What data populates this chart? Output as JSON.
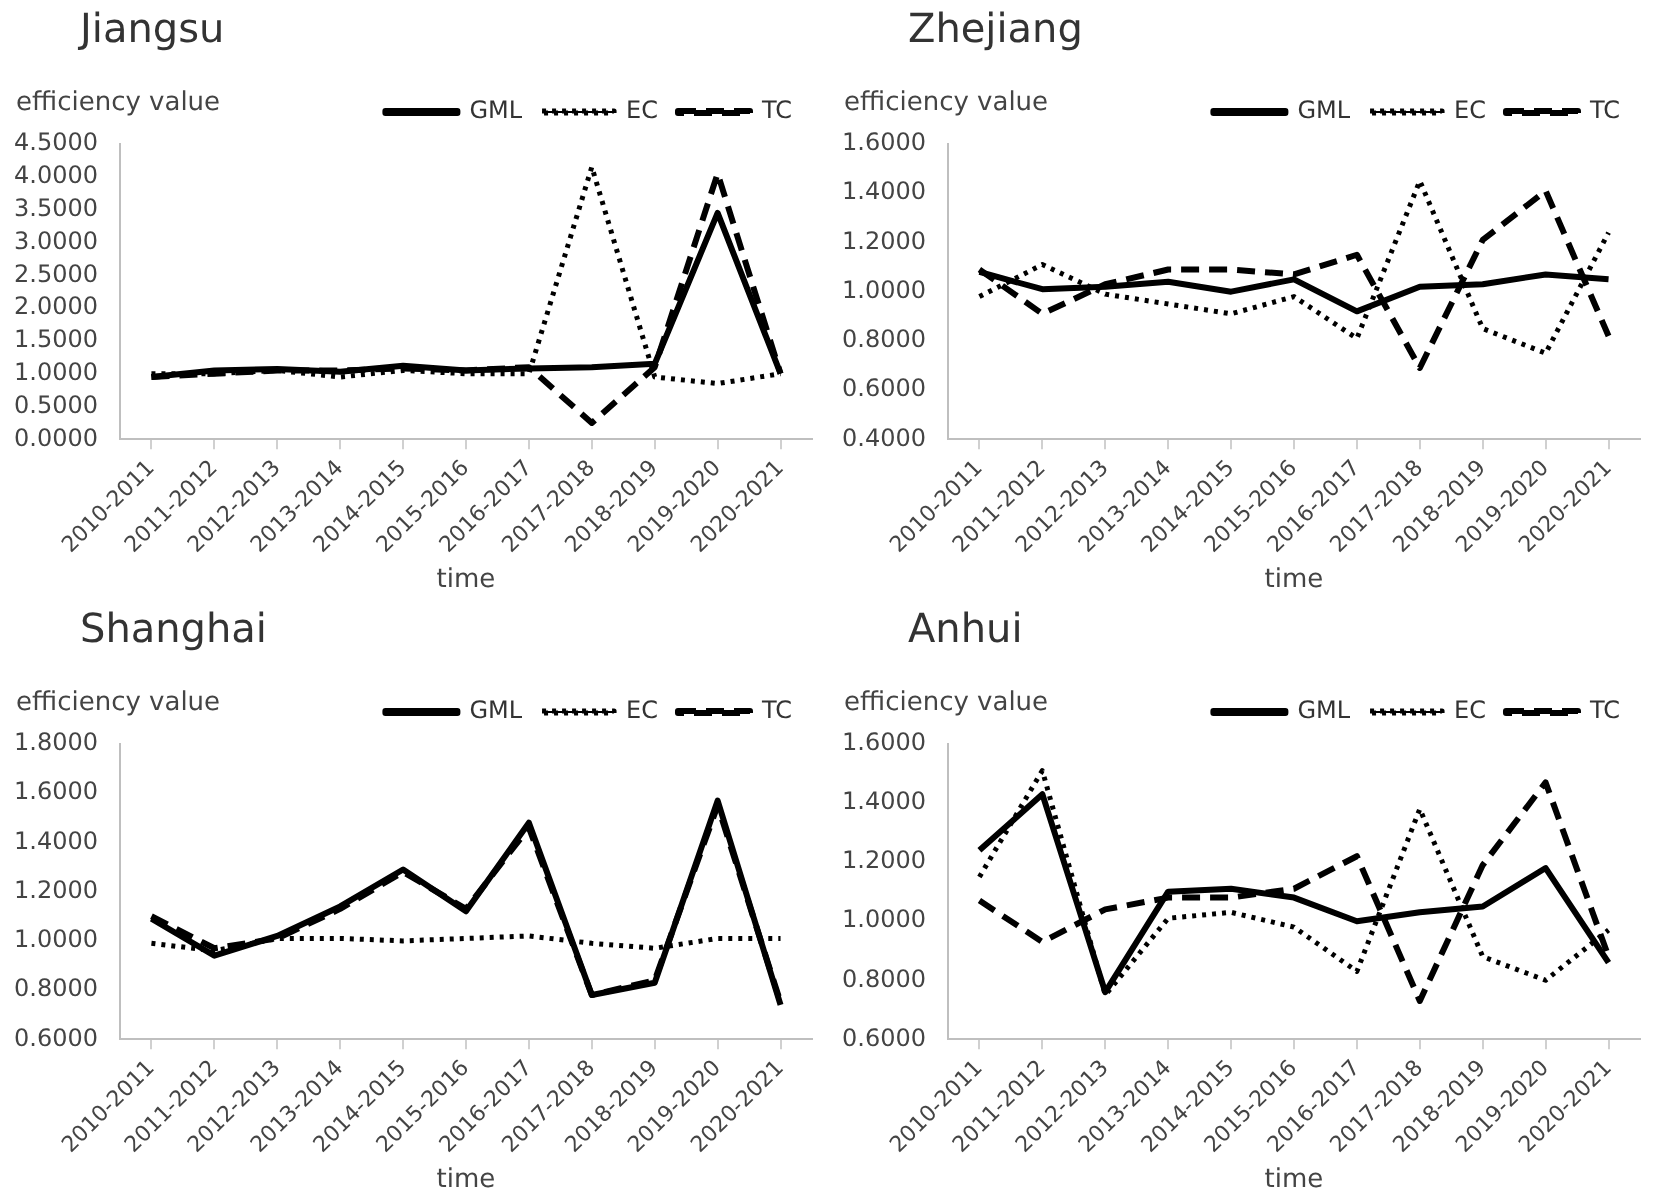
{
  "chart_data": [
    {
      "type": "line",
      "title": "Jiangsu",
      "xlabel": "time",
      "ylabel": "efficiency value",
      "legend": "top right",
      "grid": false,
      "marker": "none",
      "categories": [
        "2010-2011",
        "2011-2012",
        "2012-2013",
        "2013-2014",
        "2014-2015",
        "2015-2016",
        "2016-2017",
        "2017-2018",
        "2018-2019",
        "2019-2020",
        "2020-2021"
      ],
      "ylim": [
        0,
        4.5
      ],
      "yticks": [
        {
          "value": 0,
          "label": "0.0000"
        },
        {
          "value": 0.5,
          "label": "0.5000"
        },
        {
          "value": 1,
          "label": "1.0000"
        },
        {
          "value": 1.5,
          "label": "1.5000"
        },
        {
          "value": 2,
          "label": "2.0000"
        },
        {
          "value": 2.5,
          "label": "2.5000"
        },
        {
          "value": 3,
          "label": "3.0000"
        },
        {
          "value": 3.5,
          "label": "3.5000"
        },
        {
          "value": 4,
          "label": "4.0000"
        },
        {
          "value": 4.5,
          "label": "4.5000"
        }
      ],
      "series": [
        {
          "name": "GML",
          "color": "#000000",
          "line_style": "solid",
          "values": [
            0.95,
            1.05,
            1.07,
            1.03,
            1.12,
            1.05,
            1.08,
            1.1,
            1.15,
            3.45,
            1.0
          ]
        },
        {
          "name": "EC",
          "color": "#000000",
          "line_style": "dotted",
          "values": [
            1.0,
            1.0,
            1.05,
            0.95,
            1.05,
            1.0,
            1.0,
            4.15,
            0.95,
            0.85,
            1.0
          ]
        },
        {
          "name": "TC",
          "color": "#000000",
          "line_style": "dashed",
          "values": [
            0.95,
            1.0,
            1.05,
            1.05,
            1.08,
            1.05,
            1.1,
            0.25,
            1.1,
            4.05,
            1.0
          ]
        }
      ]
    },
    {
      "type": "line",
      "title": "Zhejiang",
      "xlabel": "time",
      "ylabel": "efficiency value",
      "legend": "top right",
      "grid": false,
      "marker": "none",
      "categories": [
        "2010-2011",
        "2011-2012",
        "2012-2013",
        "2013-2014",
        "2014-2015",
        "2015-2016",
        "2016-2017",
        "2017-2018",
        "2018-2019",
        "2019-2020",
        "2020-2021"
      ],
      "ylim": [
        0.4,
        1.6
      ],
      "yticks": [
        {
          "value": 0.4,
          "label": "0.4000"
        },
        {
          "value": 0.6,
          "label": "0.6000"
        },
        {
          "value": 0.8,
          "label": "0.8000"
        },
        {
          "value": 1,
          "label": "1.0000"
        },
        {
          "value": 1.2,
          "label": "1.2000"
        },
        {
          "value": 1.4,
          "label": "1.4000"
        },
        {
          "value": 1.6,
          "label": "1.6000"
        }
      ],
      "series": [
        {
          "name": "GML",
          "color": "#000000",
          "line_style": "solid",
          "values": [
            1.08,
            1.01,
            1.02,
            1.04,
            1.0,
            1.05,
            0.92,
            1.02,
            1.03,
            1.07,
            1.05
          ]
        },
        {
          "name": "EC",
          "color": "#000000",
          "line_style": "dotted",
          "values": [
            0.98,
            1.11,
            0.99,
            0.95,
            0.91,
            0.98,
            0.81,
            1.45,
            0.85,
            0.75,
            1.24
          ]
        },
        {
          "name": "TC",
          "color": "#000000",
          "line_style": "dashed",
          "values": [
            1.09,
            0.91,
            1.03,
            1.09,
            1.09,
            1.07,
            1.15,
            0.69,
            1.21,
            1.41,
            0.82
          ]
        }
      ]
    },
    {
      "type": "line",
      "title": "Shanghai",
      "xlabel": "time",
      "ylabel": "efficiency value",
      "legend": "top right",
      "grid": false,
      "marker": "none",
      "categories": [
        "2010-2011",
        "2011-2012",
        "2012-2013",
        "2013-2014",
        "2014-2015",
        "2015-2016",
        "2016-2017",
        "2017-2018",
        "2018-2019",
        "2019-2020",
        "2020-2021"
      ],
      "ylim": [
        0.6,
        1.8
      ],
      "yticks": [
        {
          "value": 0.6,
          "label": "0.6000"
        },
        {
          "value": 0.8,
          "label": "0.8000"
        },
        {
          "value": 1,
          "label": "1.0000"
        },
        {
          "value": 1.2,
          "label": "1.2000"
        },
        {
          "value": 1.4,
          "label": "1.4000"
        },
        {
          "value": 1.6,
          "label": "1.6000"
        },
        {
          "value": 1.8,
          "label": "1.8000"
        }
      ],
      "series": [
        {
          "name": "GML",
          "color": "#000000",
          "line_style": "solid",
          "values": [
            1.09,
            0.94,
            1.02,
            1.14,
            1.29,
            1.12,
            1.48,
            0.78,
            0.83,
            1.57,
            0.74
          ]
        },
        {
          "name": "EC",
          "color": "#000000",
          "line_style": "dotted",
          "values": [
            0.99,
            0.96,
            1.01,
            1.01,
            1.0,
            1.01,
            1.02,
            0.99,
            0.97,
            1.01,
            1.01
          ]
        },
        {
          "name": "TC",
          "color": "#000000",
          "line_style": "dashed",
          "values": [
            1.1,
            0.97,
            1.01,
            1.13,
            1.28,
            1.13,
            1.46,
            0.78,
            0.84,
            1.55,
            0.75
          ]
        }
      ]
    },
    {
      "type": "line",
      "title": "Anhui",
      "xlabel": "time",
      "ylabel": "efficiency value",
      "legend": "top right",
      "grid": false,
      "marker": "none",
      "categories": [
        "2010-2011",
        "2011-2012",
        "2012-2013",
        "2013-2014",
        "2014-2015",
        "2015-2016",
        "2016-2017",
        "2017-2018",
        "2018-2019",
        "2019-2020",
        "2020-2021"
      ],
      "ylim": [
        0.6,
        1.6
      ],
      "yticks": [
        {
          "value": 0.6,
          "label": "0.6000"
        },
        {
          "value": 0.8,
          "label": "0.8000"
        },
        {
          "value": 1,
          "label": "1.0000"
        },
        {
          "value": 1.2,
          "label": "1.2000"
        },
        {
          "value": 1.4,
          "label": "1.4000"
        },
        {
          "value": 1.6,
          "label": "1.6000"
        }
      ],
      "series": [
        {
          "name": "GML",
          "color": "#000000",
          "line_style": "solid",
          "values": [
            1.24,
            1.43,
            0.76,
            1.1,
            1.11,
            1.08,
            1.0,
            1.03,
            1.05,
            1.18,
            0.86
          ]
        },
        {
          "name": "EC",
          "color": "#000000",
          "line_style": "dotted",
          "values": [
            1.15,
            1.51,
            0.75,
            1.01,
            1.03,
            0.98,
            0.83,
            1.38,
            0.88,
            0.8,
            0.97
          ]
        },
        {
          "name": "TC",
          "color": "#000000",
          "line_style": "dashed",
          "values": [
            1.07,
            0.93,
            1.04,
            1.08,
            1.08,
            1.11,
            1.22,
            0.73,
            1.19,
            1.47,
            0.88
          ]
        }
      ]
    }
  ]
}
